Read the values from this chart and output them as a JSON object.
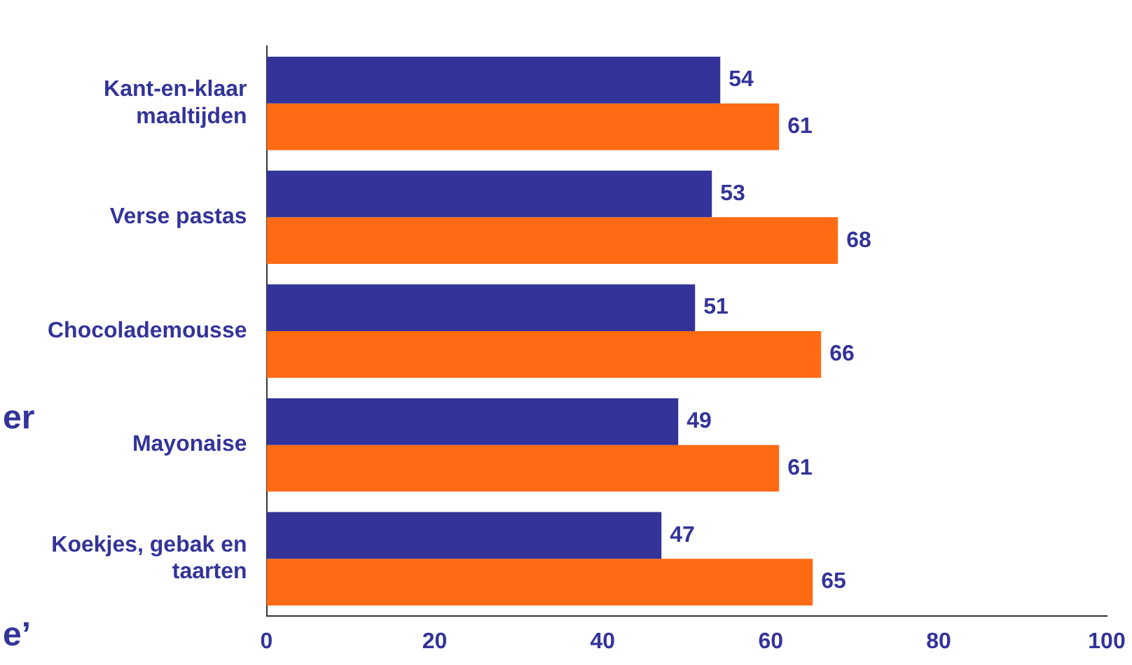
{
  "chart_data": {
    "type": "bar",
    "orientation": "horizontal",
    "categories": [
      "Kant-en-klaar maaltijden",
      "Verse pastas",
      "Chocolademousse",
      "Mayonaise",
      "Koekjes, gebak en taarten"
    ],
    "series": [
      {
        "color": "#333399",
        "values": [
          54,
          53,
          51,
          49,
          47
        ]
      },
      {
        "color": "#ff6a13",
        "values": [
          61,
          68,
          66,
          61,
          65
        ]
      }
    ],
    "xlim": [
      0,
      100
    ],
    "xticks": [
      0,
      20,
      40,
      60,
      80,
      100
    ],
    "grid": false,
    "legend": false,
    "data_labels": true,
    "annotations": [
      "er",
      "e’"
    ]
  }
}
